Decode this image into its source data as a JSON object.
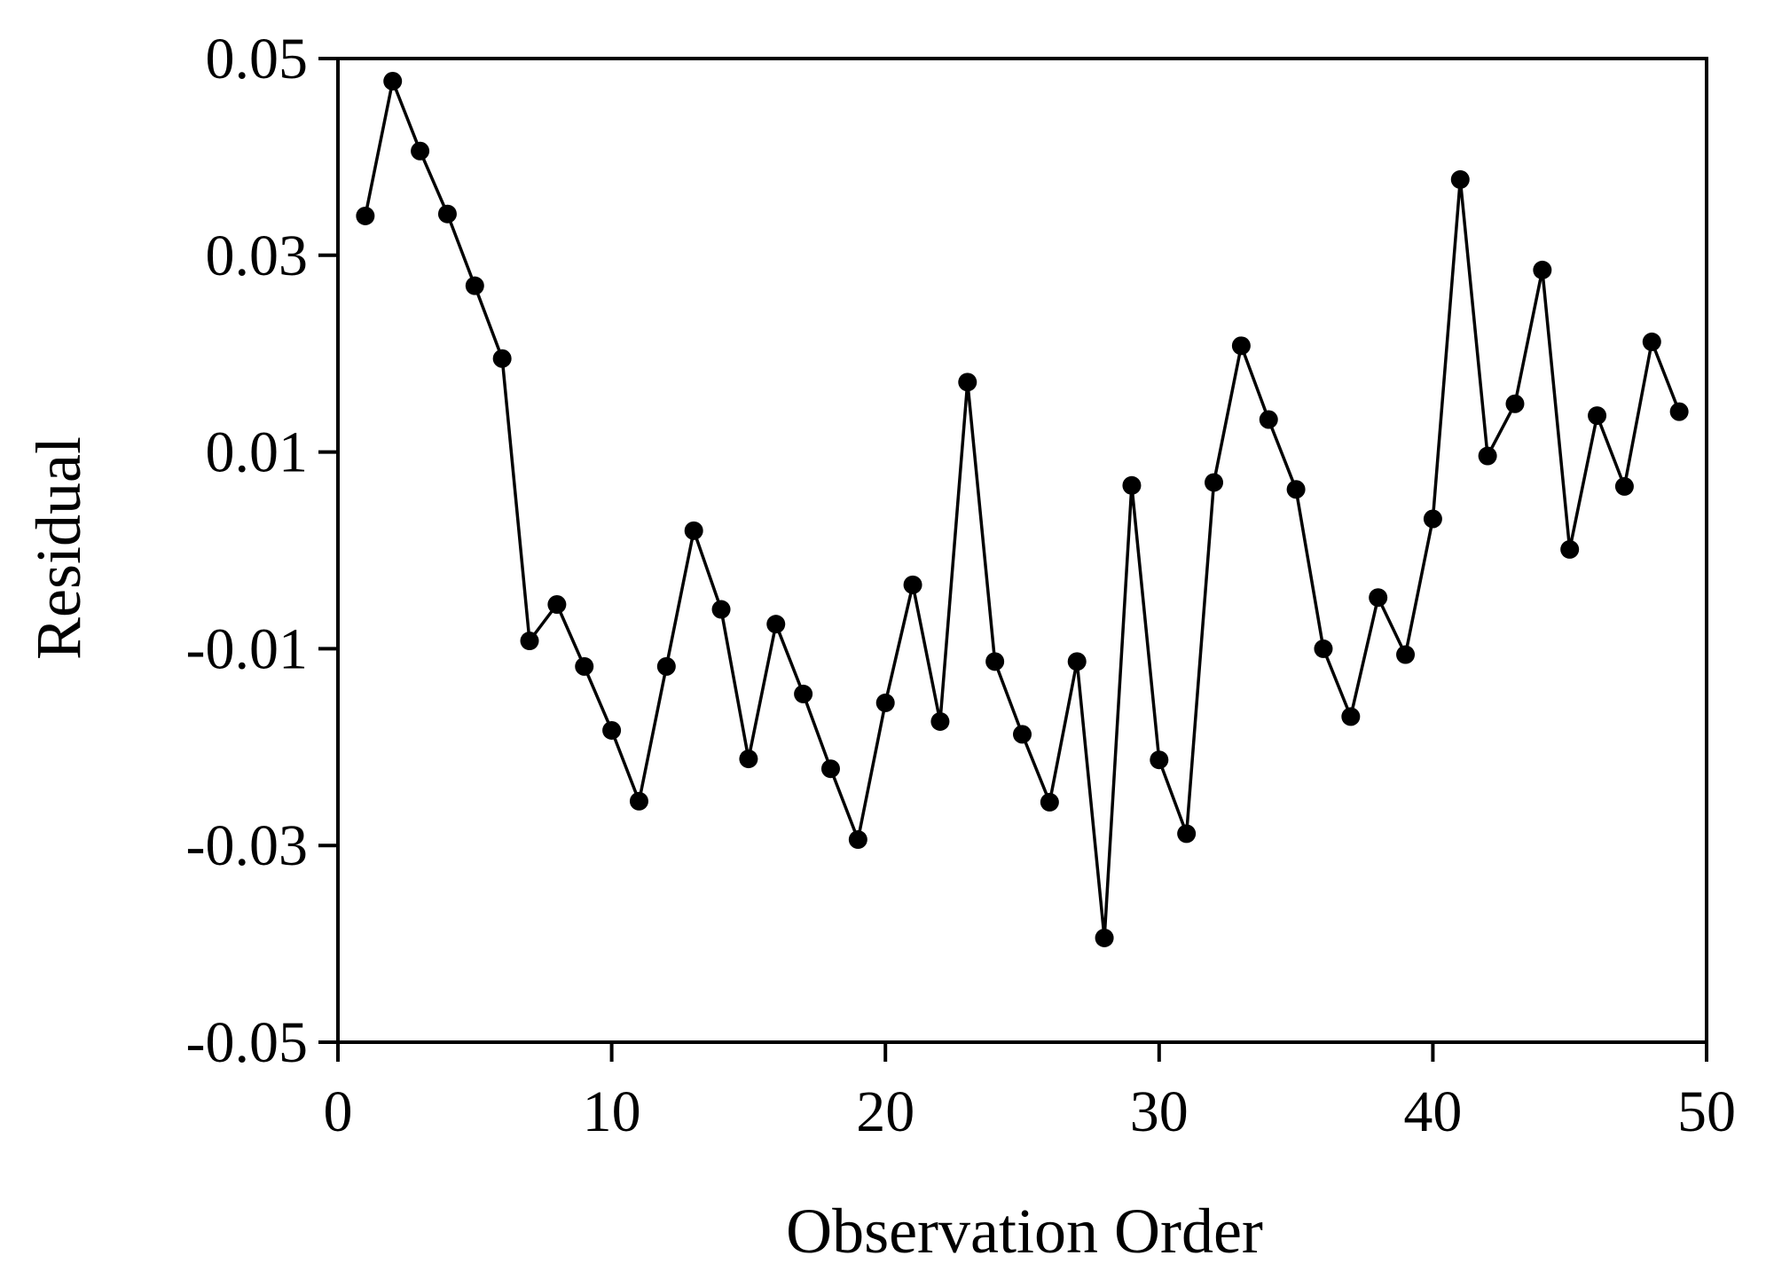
{
  "chart_data": {
    "type": "line",
    "title": "",
    "xlabel": "Observation Order",
    "ylabel": "Residual",
    "xlim": [
      0,
      50
    ],
    "ylim": [
      -0.05,
      0.05
    ],
    "x_ticks": [
      0,
      10,
      20,
      30,
      40,
      50
    ],
    "x_tick_labels": [
      "0",
      "10",
      "20",
      "30",
      "40",
      "50"
    ],
    "y_ticks": [
      0.05,
      0.03,
      0.01,
      -0.01,
      -0.03,
      -0.05
    ],
    "y_tick_labels": [
      "0.05",
      "0.03",
      "0.01",
      "-0.01",
      "-0.03",
      "-0.05"
    ],
    "grid": false,
    "legend": "none",
    "marker": "filled-circle",
    "colors": {
      "line": "#000000",
      "marker": "#000000",
      "axis": "#000000"
    },
    "series": [
      {
        "x": [
          1,
          2,
          3,
          4,
          5,
          6,
          7,
          8,
          9,
          10,
          11,
          12,
          13,
          14,
          15,
          16,
          17,
          18,
          19,
          20,
          21,
          22,
          23,
          24,
          25,
          26,
          27,
          28,
          29,
          30,
          31,
          32,
          33,
          34,
          35,
          36,
          37,
          38,
          39,
          40,
          41,
          42,
          43,
          44,
          45,
          46,
          47,
          48,
          49
        ],
        "values": [
          0.034,
          0.0477,
          0.0406,
          0.0342,
          0.0269,
          0.0195,
          -0.0092,
          -0.0055,
          -0.0118,
          -0.0183,
          -0.0255,
          -0.0118,
          0.002,
          -0.006,
          -0.0212,
          -0.0075,
          -0.0146,
          -0.0222,
          -0.0294,
          -0.0155,
          -0.0035,
          -0.0174,
          0.0171,
          -0.0113,
          -0.0187,
          -0.0256,
          -0.0113,
          -0.0394,
          0.0066,
          -0.0213,
          -0.0288,
          0.0069,
          0.0208,
          0.0133,
          0.0062,
          -0.01,
          -0.0169,
          -0.0048,
          -0.0106,
          0.0032,
          0.0377,
          0.0096,
          0.0149,
          0.0285,
          0.0001,
          0.0137,
          0.0065,
          0.0212,
          0.0141
        ]
      }
    ]
  }
}
